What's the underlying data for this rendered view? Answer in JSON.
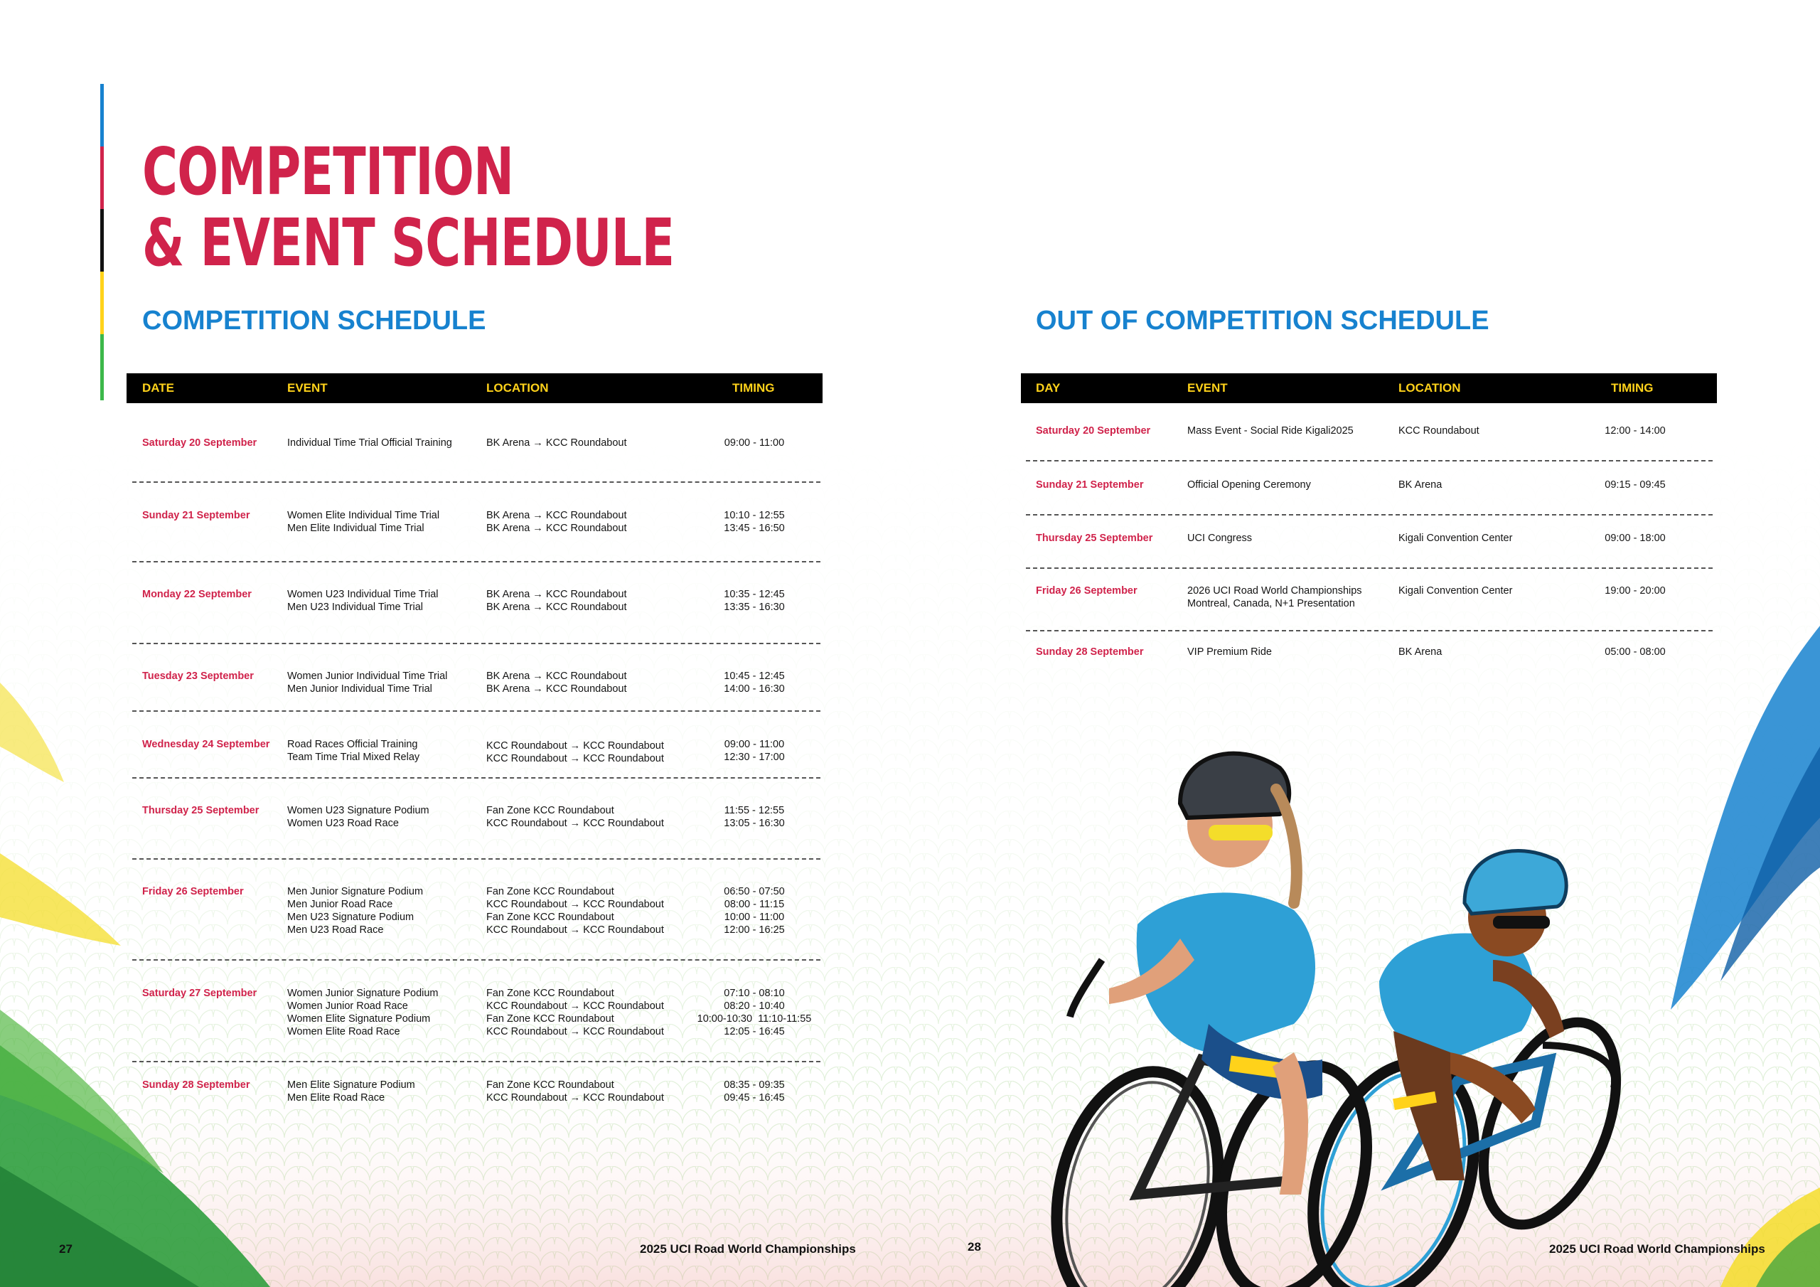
{
  "title": {
    "line1": "COMPETITION",
    "line2": "& EVENT SCHEDULE"
  },
  "competition": {
    "heading": "COMPETITION SCHEDULE",
    "headers": {
      "date": "DATE",
      "event": "EVENT",
      "location": "LOCATION",
      "timing": "TIMING"
    },
    "rows": [
      {
        "date": "Saturday 20 September",
        "event": "Individual Time Trial Official Training",
        "location": "BK Arena → KCC Roundabout",
        "timing": "09:00 - 11:00"
      },
      {
        "date": "Sunday 21 September",
        "event": "Women Elite Individual Time Trial\nMen Elite Individual Time Trial",
        "location": "BK Arena → KCC Roundabout\nBK Arena → KCC Roundabout",
        "timing": "10:10 - 12:55\n13:45 - 16:50"
      },
      {
        "date": "Monday 22 September",
        "event": "Women U23 Individual Time Trial\nMen U23 Individual Time Trial",
        "location": "BK Arena → KCC Roundabout\nBK Arena → KCC Roundabout",
        "timing": "10:35 - 12:45\n13:35 - 16:30"
      },
      {
        "date": "Tuesday 23 September",
        "event": "Women Junior Individual Time Trial\nMen Junior Individual Time Trial",
        "location": "BK Arena → KCC Roundabout\nBK Arena → KCC Roundabout",
        "timing": "10:45 - 12:45\n14:00 - 16:30"
      },
      {
        "date": "Wednesday 24 September",
        "event": "Road Races Official Training\nTeam Time Trial Mixed Relay",
        "location": "KCC Roundabout → KCC Roundabout\nKCC Roundabout → KCC Roundabout",
        "timing": "09:00 - 11:00\n12:30 - 17:00"
      },
      {
        "date": "Thursday 25 September",
        "event": "Women U23 Signature Podium\nWomen U23 Road Race",
        "location": "Fan Zone KCC Roundabout\nKCC Roundabout → KCC Roundabout",
        "timing": "11:55 - 12:55\n13:05 - 16:30"
      },
      {
        "date": "Friday 26 September",
        "event": "Men Junior Signature Podium\nMen Junior Road Race\nMen U23 Signature Podium\nMen U23 Road Race",
        "location": "Fan Zone KCC Roundabout\nKCC Roundabout → KCC Roundabout\nFan Zone KCC Roundabout\nKCC Roundabout → KCC Roundabout",
        "timing": "06:50 - 07:50\n08:00 - 11:15\n10:00 - 11:00\n12:00 - 16:25"
      },
      {
        "date": "Saturday 27 September",
        "event": "Women Junior Signature Podium\nWomen Junior Road Race\nWomen Elite Signature Podium\nWomen Elite Road Race",
        "location": "Fan Zone KCC Roundabout\nKCC Roundabout → KCC Roundabout\nFan Zone KCC Roundabout\nKCC Roundabout → KCC Roundabout",
        "timing": "07:10 - 08:10\n08:20 - 10:40\n10:00-10:30  11:10-11:55\n12:05 - 16:45"
      },
      {
        "date": "Sunday 28 September",
        "event": "Men Elite Signature Podium\nMen Elite Road Race",
        "location": "Fan Zone KCC Roundabout\nKCC Roundabout → KCC Roundabout",
        "timing": "08:35 - 09:35\n09:45 - 16:45"
      }
    ]
  },
  "out_of_competition": {
    "heading": "OUT OF COMPETITION SCHEDULE",
    "headers": {
      "day": "DAY",
      "event": "EVENT",
      "location": "LOCATION",
      "timing": "TIMING"
    },
    "rows": [
      {
        "date": "Saturday 20 September",
        "event": "Mass Event - Social Ride Kigali2025",
        "location": "KCC Roundabout",
        "timing": "12:00 - 14:00"
      },
      {
        "date": "Sunday 21 September",
        "event": "Official Opening Ceremony",
        "location": "BK Arena",
        "timing": "09:15 - 09:45"
      },
      {
        "date": "Thursday 25 September",
        "event": "UCI Congress",
        "location": "Kigali Convention Center",
        "timing": "09:00 - 18:00"
      },
      {
        "date": "Friday 26 September",
        "event": "2026 UCI Road World Championships\nMontreal, Canada, N+1 Presentation",
        "location": "Kigali Convention Center",
        "timing": "19:00 - 20:00"
      },
      {
        "date": "Sunday 28 September",
        "event": "VIP Premium Ride",
        "location": "BK Arena",
        "timing": "05:00 - 08:00"
      }
    ]
  },
  "footer": {
    "left_page": "27",
    "left_title": "2025 UCI Road World Championships",
    "right_page": "28",
    "right_title": "2025 UCI Road World Championships"
  },
  "colors": {
    "accent_red": "#d0234b",
    "heading_blue": "#1782cf",
    "header_yellow": "#ffd21a",
    "uci_stripe": [
      "#1782cf",
      "#d0234b",
      "#111111",
      "#ffd21a",
      "#3cb84a"
    ]
  },
  "illustration": {
    "subject": "two-cyclists-illustration"
  }
}
